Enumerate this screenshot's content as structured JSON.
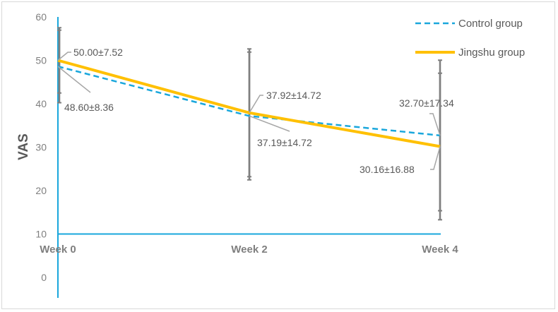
{
  "chart_data": {
    "type": "line",
    "ylabel": "VAS",
    "xlabel": "",
    "ylim": [
      0,
      60
    ],
    "yticks": [
      0,
      10,
      20,
      30,
      40,
      50,
      60
    ],
    "categories": [
      "Week 0",
      "Week 2",
      "Week 4"
    ],
    "grid": false,
    "legend_position": "top-right",
    "series": [
      {
        "name": "Control group",
        "style": "dashed",
        "color": "#1aa7dc",
        "values": [
          48.6,
          37.19,
          32.7
        ],
        "sd": [
          8.36,
          14.72,
          17.34
        ],
        "labels": [
          "48.60±8.36",
          "37.19±14.72",
          "32.70±17.34"
        ]
      },
      {
        "name": "Jingshu group",
        "style": "solid",
        "color": "#ffc000",
        "values": [
          50.0,
          37.92,
          30.16
        ],
        "sd": [
          7.52,
          14.72,
          16.88
        ],
        "labels": [
          "50.00±7.52",
          "37.92±14.72",
          "30.16±16.88"
        ]
      }
    ]
  }
}
